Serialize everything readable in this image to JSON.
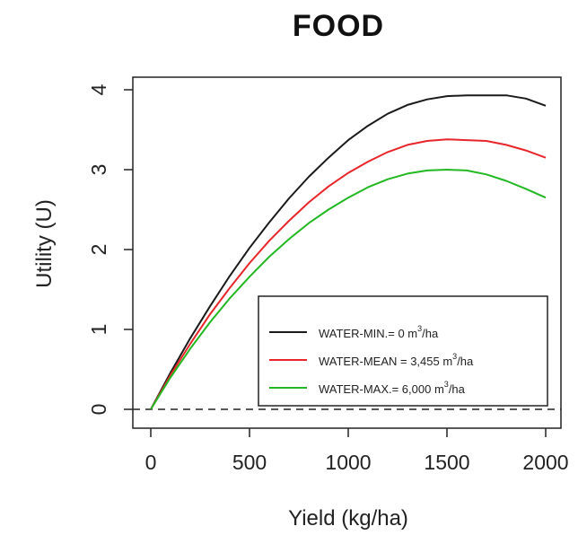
{
  "chart_data": {
    "type": "line",
    "title": "FOOD",
    "xlabel": "Yield (kg/ha)",
    "ylabel": "Utility (U)",
    "xlim": [
      0,
      2000
    ],
    "ylim": [
      0,
      4
    ],
    "xticks": [
      "0",
      "500",
      "1000",
      "1500",
      "2000"
    ],
    "yticks": [
      "0",
      "1",
      "2",
      "3",
      "4"
    ],
    "grid": false,
    "legend_position": "bottom-right",
    "reference_line": {
      "y": 0,
      "style": "dashed"
    },
    "x": [
      0,
      100,
      200,
      300,
      400,
      500,
      600,
      700,
      800,
      900,
      1000,
      1100,
      1200,
      1300,
      1400,
      1500,
      1600,
      1700,
      1800,
      1900,
      2000
    ],
    "series": [
      {
        "name": "WATER-MIN.= 0 m3/ha",
        "label_main": "WATER-MIN.= 0 m",
        "label_sup": "3",
        "label_tail": "/ha",
        "color": "#1a1a1a",
        "values": [
          0.0,
          0.46,
          0.89,
          1.29,
          1.67,
          2.02,
          2.34,
          2.64,
          2.91,
          3.15,
          3.37,
          3.55,
          3.7,
          3.81,
          3.88,
          3.92,
          3.93,
          3.93,
          3.93,
          3.89,
          3.8
        ]
      },
      {
        "name": "WATER-MEAN = 3,455 m3/ha",
        "label_main": "WATER-MEAN = 3,455 m",
        "label_sup": "3",
        "label_tail": "/ha",
        "color": "#e8262a",
        "values": [
          0.0,
          0.43,
          0.82,
          1.19,
          1.52,
          1.83,
          2.11,
          2.36,
          2.59,
          2.79,
          2.96,
          3.1,
          3.22,
          3.31,
          3.36,
          3.38,
          3.37,
          3.36,
          3.31,
          3.24,
          3.15
        ]
      },
      {
        "name": "WATER-MAX.= 6,000 m3/ha",
        "label_main": "WATER-MAX.= 6,000 m",
        "label_sup": "3",
        "label_tail": "/ha",
        "color": "#22b822",
        "values": [
          0.0,
          0.4,
          0.76,
          1.09,
          1.39,
          1.66,
          1.91,
          2.13,
          2.33,
          2.5,
          2.65,
          2.78,
          2.88,
          2.95,
          2.99,
          3.0,
          2.99,
          2.94,
          2.86,
          2.76,
          2.65
        ]
      }
    ]
  }
}
